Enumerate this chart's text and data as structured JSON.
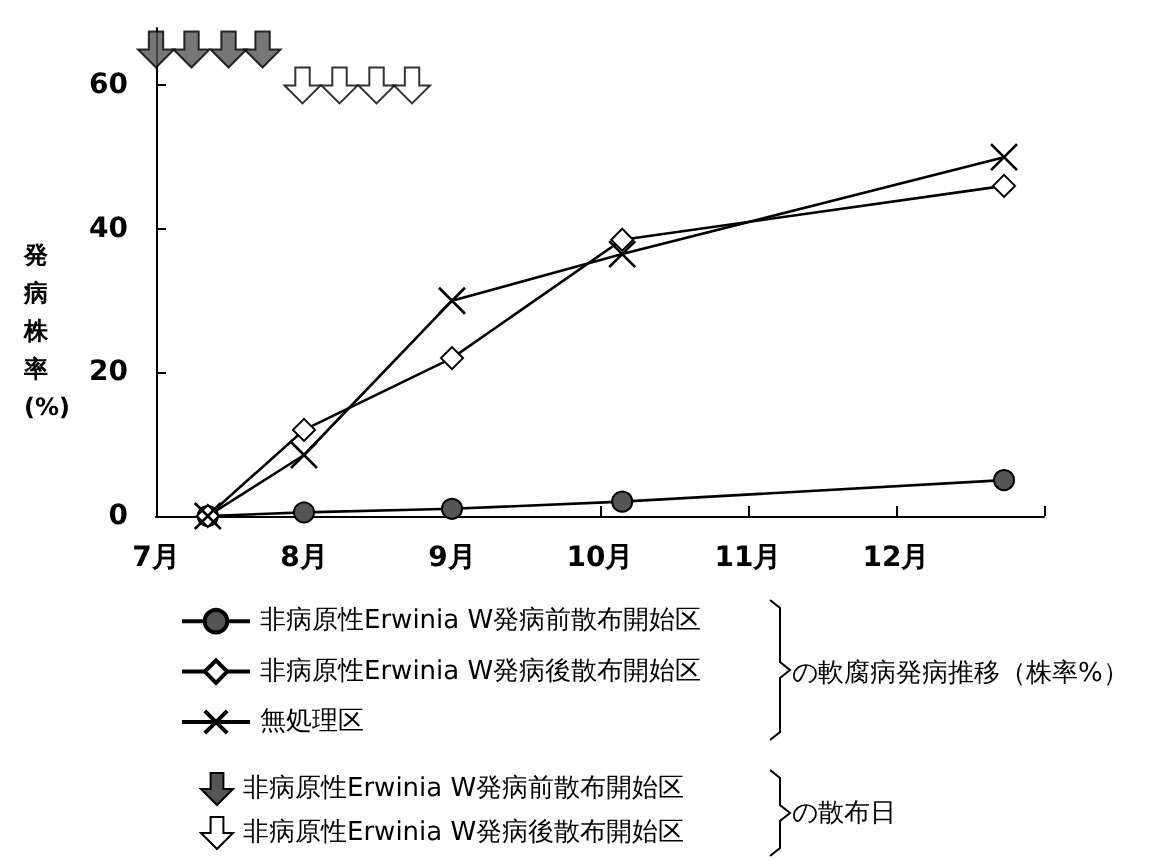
{
  "chart_data": {
    "type": "line",
    "ylabel": "発病株率(%)",
    "xlim": [
      7,
      13
    ],
    "xticks": [
      {
        "value": 7,
        "label": "7月"
      },
      {
        "value": 8,
        "label": "8月"
      },
      {
        "value": 9,
        "label": "9月"
      },
      {
        "value": 10,
        "label": "10月"
      },
      {
        "value": 11,
        "label": "11月"
      },
      {
        "value": 12,
        "label": "12月"
      },
      {
        "value": 13,
        "label": null
      }
    ],
    "ylim": [
      0,
      68
    ],
    "yticks": [
      0,
      20,
      40,
      60
    ],
    "grid": false,
    "legend": "bottom left",
    "line_style": "solid",
    "series": [
      {
        "name": "非病原性Erwinia W発病前散布開始区",
        "color": "#555555",
        "marker": "circle",
        "x": [
          7.35,
          8,
          9,
          10.15,
          12.73
        ],
        "values": [
          0,
          0.5,
          1,
          2,
          5
        ]
      },
      {
        "name": "非病原性Erwinia W発病後散布開始区",
        "color": "#ffffff",
        "marker": "diamond",
        "x": [
          7.35,
          8,
          9,
          10.15,
          12.73
        ],
        "values": [
          0,
          12,
          22,
          38.5,
          46
        ]
      },
      {
        "name": "無処理区",
        "color": "#000000",
        "marker": "cross",
        "x": [
          7.35,
          8,
          9,
          10.15,
          12.73
        ],
        "values": [
          0,
          8.5,
          30,
          36.5,
          50
        ]
      },
      {
        "name": "非病原性Erwinia W発病前散布開始区",
        "type": "scatter",
        "color": "#555555",
        "x": [
          7,
          7.24,
          7.49,
          7.72
        ],
        "values": [
          65,
          65,
          65,
          65
        ]
      },
      {
        "name": "非病原性Erwinia W発病後散布開始区",
        "type": "scatter",
        "color": "#ffffff",
        "x": [
          7.99,
          8.24,
          8.49,
          8.73
        ],
        "values": [
          60,
          60,
          60,
          60
        ]
      }
    ],
    "annotations": [
      "の軟腐病発病推移（株率%）",
      "の散布日"
    ]
  }
}
